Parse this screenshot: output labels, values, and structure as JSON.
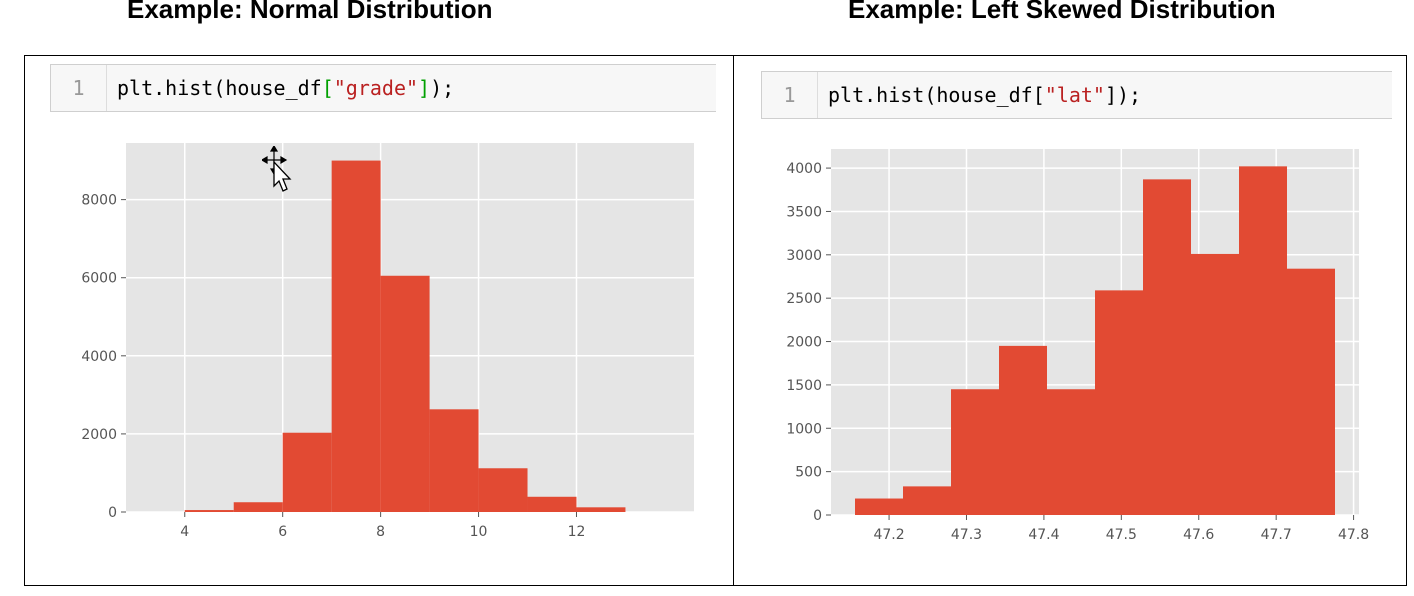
{
  "headings": {
    "left": "Example: Normal Distribution",
    "right": "Example: Left Skewed Distribution"
  },
  "cells": {
    "left": {
      "line_number": "1",
      "code_prefix": "plt.hist(house_df",
      "open_bracket": "[",
      "string_arg": "\"grade\"",
      "close_bracket": "]",
      "code_suffix": ");"
    },
    "right": {
      "line_number": "1",
      "code_prefix": "plt.hist(house_df[",
      "string_arg": "\"lat\"",
      "code_suffix": "]);"
    }
  },
  "colors": {
    "bar": "#e24a33",
    "background": "#e5e5e5",
    "grid": "#ffffff"
  },
  "chart_data": [
    {
      "type": "bar",
      "title": "",
      "xlabel": "",
      "ylabel": "",
      "bin_edges": [
        4,
        5,
        6,
        7,
        8,
        9,
        10,
        11,
        12,
        13
      ],
      "values": [
        50,
        250,
        2030,
        9000,
        6050,
        2630,
        1120,
        390,
        120
      ],
      "xlim": [
        2.8,
        14.4
      ],
      "ylim": [
        0,
        9450
      ],
      "xticks": [
        4,
        6,
        8,
        10,
        12
      ],
      "xtick_labels": [
        "4",
        "6",
        "8",
        "10",
        "12"
      ],
      "yticks": [
        0,
        2000,
        4000,
        6000,
        8000
      ],
      "ytick_labels": [
        "0",
        "2000",
        "4000",
        "6000",
        "8000"
      ],
      "grid": true
    },
    {
      "type": "bar",
      "title": "",
      "xlabel": "",
      "ylabel": "",
      "bin_edges": [
        47.156,
        47.218,
        47.28,
        47.342,
        47.404,
        47.466,
        47.528,
        47.59,
        47.652,
        47.714,
        47.776
      ],
      "values": [
        190,
        330,
        1450,
        1950,
        1450,
        2590,
        3870,
        3010,
        4020,
        2840
      ],
      "xlim": [
        47.125,
        47.807
      ],
      "ylim": [
        0,
        4220
      ],
      "xticks": [
        47.2,
        47.3,
        47.4,
        47.5,
        47.6,
        47.7,
        47.8
      ],
      "xtick_labels": [
        "47.2",
        "47.3",
        "47.4",
        "47.5",
        "47.6",
        "47.7",
        "47.8"
      ],
      "yticks": [
        0,
        500,
        1000,
        1500,
        2000,
        2500,
        3000,
        3500,
        4000
      ],
      "ytick_labels": [
        "0",
        "500",
        "1000",
        "1500",
        "2000",
        "2500",
        "3000",
        "3500",
        "4000"
      ],
      "grid": true
    }
  ]
}
